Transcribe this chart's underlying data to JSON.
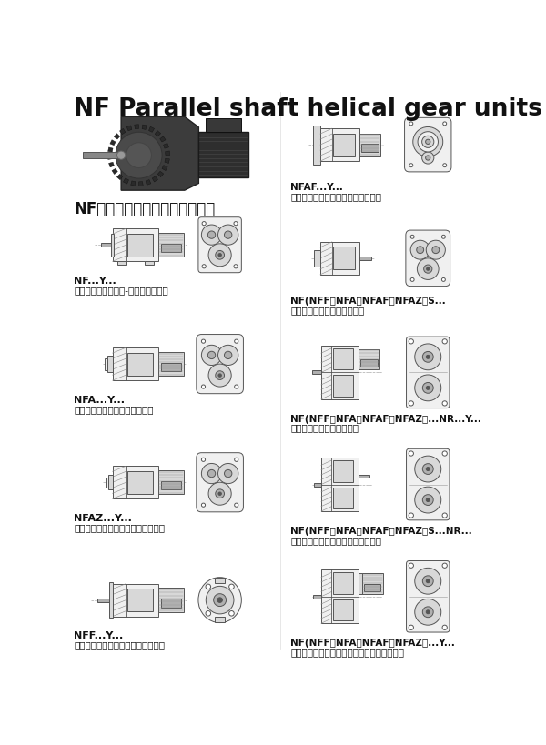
{
  "title": "NF Parallel shaft helical gear units",
  "subtitle": "NF系列减速机有以下设计方案：",
  "bg": "#ffffff",
  "ec": "#555555",
  "fc_light": "#f0f0f0",
  "fc_mid": "#d8d8d8",
  "fc_dark": "#b0b0b0",
  "lw": 0.7,
  "left_labels1": [
    "NF...Y...",
    "NFA...Y...",
    "NFAZ...Y...",
    "NFF...Y..."
  ],
  "left_labels2": [
    "底脚轴伸式安装斜齿-蜃轮蜃杆减速机",
    "空心轴安装平行轴斜齿轮减速机",
    "小法兰空心轴安装平行斜齿轮减速机",
    "法兰轴伸式安装平行轴斜齿轮减速机"
  ],
  "right_labels1": [
    "NFAF...Y...",
    "NF(NFF、NFA、NFAF、NFAZ）S...",
    "NF(NFF、NFA、NFAF、NFAZ）...NR...Y...",
    "NF(NFF、NFA、NFAF、NFAZ）S...NR...",
    "NF(NFF、NFA、NFAF、NFAZ）...Y..."
  ],
  "right_labels2": [
    "法兰空心轴安装平行轴斜齿轮减速机",
    "轴输入的平行轴斜齿轮减速机",
    "组合式平行轴斜齿轮减速机",
    "轴输入的组合式平行轴斜齿轮减速机",
    "电机用户自配或配特殊电机时带加联接法兰，"
  ]
}
